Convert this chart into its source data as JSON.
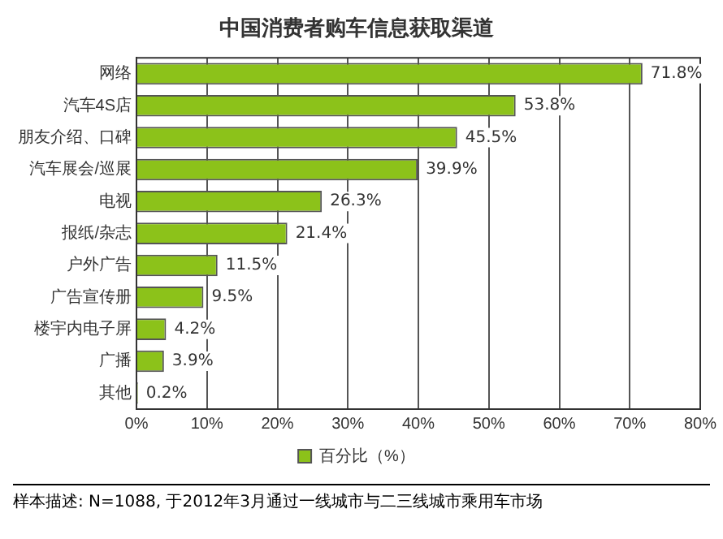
{
  "chart_data": {
    "type": "bar",
    "orientation": "horizontal",
    "title": "中国消费者购车信息获取渠道",
    "categories": [
      "网络",
      "汽车4S店",
      "朋友介绍、口碑",
      "汽车展会/巡展",
      "电视",
      "报纸/杂志",
      "户外广告",
      "广告宣传册",
      "楼宇内电子屏",
      "广播",
      "其他"
    ],
    "series": [
      {
        "name": "百分比（%）",
        "color": "#8cc21a",
        "values": [
          71.8,
          53.8,
          45.5,
          39.9,
          26.3,
          21.4,
          11.5,
          9.5,
          4.2,
          3.9,
          0.2
        ],
        "value_labels": [
          "71.8%",
          "53.8%",
          "45.5%",
          "39.9%",
          "26.3%",
          "21.4%",
          "11.5%",
          "9.5%",
          "4.2%",
          "3.9%",
          "0.2%"
        ]
      }
    ],
    "xlim": [
      0,
      80
    ],
    "xticks": [
      {
        "value": 0,
        "label": "0%"
      },
      {
        "value": 10,
        "label": "10%"
      },
      {
        "value": 20,
        "label": "20%"
      },
      {
        "value": 30,
        "label": "30%"
      },
      {
        "value": 40,
        "label": "40%"
      },
      {
        "value": 50,
        "label": "50%"
      },
      {
        "value": 60,
        "label": "60%"
      },
      {
        "value": 70,
        "label": "70%"
      },
      {
        "value": 80,
        "label": "80%"
      }
    ],
    "grid": "x",
    "legend": "bottom",
    "annotations": [
      "样本描述: N=1088, 于2012年3月通过一线城市与二三线城市乘用车市场"
    ]
  }
}
